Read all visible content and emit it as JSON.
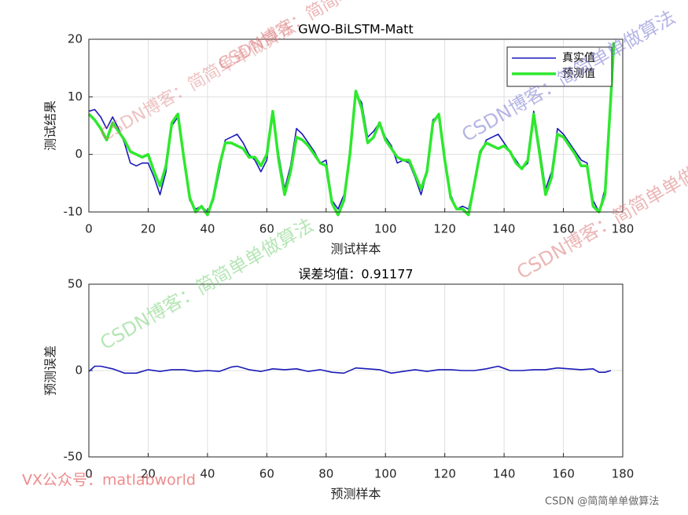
{
  "chart_data": [
    {
      "type": "line",
      "title": "GWO-BiLSTM-Matt",
      "x_label": "测试样本",
      "y_label": "测试结果",
      "x": [
        0,
        2,
        4,
        6,
        8,
        10,
        12,
        14,
        16,
        18,
        20,
        22,
        24,
        26,
        28,
        30,
        32,
        34,
        36,
        38,
        40,
        42,
        44,
        46,
        48,
        50,
        52,
        54,
        56,
        58,
        60,
        62,
        64,
        66,
        68,
        70,
        72,
        74,
        76,
        78,
        80,
        82,
        84,
        86,
        88,
        90,
        92,
        94,
        96,
        98,
        100,
        102,
        104,
        106,
        108,
        110,
        112,
        114,
        116,
        118,
        120,
        122,
        124,
        126,
        128,
        130,
        132,
        134,
        136,
        138,
        140,
        142,
        144,
        146,
        148,
        150,
        152,
        154,
        156,
        158,
        160,
        162,
        164,
        166,
        168,
        170,
        172,
        174,
        176,
        177
      ],
      "series": [
        {
          "name": "真实值",
          "color": "#1a1ab8",
          "width": 1.6,
          "values": [
            7.5,
            7.8,
            6.5,
            4.5,
            6.5,
            4.5,
            2,
            -1.5,
            -2,
            -1.5,
            -1.5,
            -4,
            -7,
            -3,
            5,
            6.5,
            -1,
            -8,
            -9.5,
            -9,
            -10,
            -8,
            -3,
            2.5,
            3,
            3.5,
            2,
            0,
            -1,
            -3,
            -1,
            7,
            0,
            -6,
            -2,
            4.5,
            3.5,
            2,
            0.5,
            -1.5,
            -1,
            -8,
            -9.5,
            -7,
            0,
            10.5,
            9,
            3,
            4,
            5.5,
            3,
            1.5,
            -1.5,
            -1,
            -1.5,
            -4,
            -7,
            -3,
            6,
            6.8,
            -1,
            -7,
            -9.5,
            -9,
            -9.5,
            -5,
            0,
            2.5,
            3,
            3.5,
            2,
            0.5,
            -1,
            -2.5,
            -1.5,
            7.5,
            1,
            -6,
            -3,
            4.5,
            3.5,
            2,
            0.5,
            -1,
            -1.5,
            -8,
            -10,
            -6,
            10,
            18
          ]
        },
        {
          "name": "预测值",
          "color": "#2ee82e",
          "width": 3.5,
          "values": [
            7,
            6,
            4.5,
            2.5,
            5.5,
            4,
            2.5,
            0.5,
            0,
            -0.5,
            0,
            -3,
            -5.5,
            -2,
            5.5,
            7,
            -0.5,
            -7.5,
            -10,
            -9,
            -10.5,
            -7.5,
            -2,
            2,
            2,
            1.5,
            1,
            -0.5,
            -0.5,
            -2,
            0,
            7.5,
            -1,
            -7,
            -3,
            3,
            2.5,
            1.5,
            0,
            -1.5,
            -2,
            -8.5,
            -10.5,
            -8,
            0,
            11,
            8,
            2,
            3,
            5.5,
            2.5,
            1,
            -0.5,
            -1,
            -1,
            -3.5,
            -6,
            -3,
            5.5,
            7,
            -1,
            -7.5,
            -9.5,
            -9.5,
            -10.5,
            -5,
            0.5,
            2,
            1.5,
            1,
            1.5,
            0.5,
            -1.5,
            -2.5,
            -1,
            7,
            0,
            -7,
            -4,
            3.5,
            3,
            1.5,
            0,
            -2,
            -2,
            -9,
            -10,
            -7,
            10,
            19.5
          ]
        }
      ],
      "xlim": [
        0,
        180
      ],
      "xticks": [
        0,
        20,
        40,
        60,
        80,
        100,
        120,
        140,
        160,
        180
      ],
      "ylim": [
        -10,
        20
      ],
      "yticks": [
        -10,
        0,
        10,
        20
      ],
      "grid": true,
      "legend": "northeast"
    },
    {
      "type": "line",
      "title": "误差均值：0.91177",
      "x_label": "预测样本",
      "y_label": "预测误差",
      "x": [
        0,
        2,
        4,
        8,
        12,
        16,
        20,
        24,
        28,
        32,
        36,
        40,
        44,
        48,
        50,
        54,
        58,
        62,
        66,
        70,
        74,
        78,
        82,
        86,
        90,
        94,
        98,
        102,
        106,
        110,
        114,
        118,
        122,
        126,
        130,
        134,
        138,
        142,
        146,
        150,
        154,
        158,
        162,
        166,
        170,
        172,
        174,
        176
      ],
      "series": [
        {
          "name": null,
          "color": "#1a1ab8",
          "width": 1.6,
          "values": [
            -0.5,
            2.5,
            2.5,
            1,
            -1.5,
            -1.5,
            0.5,
            -0.5,
            0.5,
            0.5,
            -0.5,
            0,
            -0.5,
            2,
            2.5,
            0.5,
            -0.5,
            1,
            0.5,
            1,
            -0.5,
            0.5,
            -1,
            -1.5,
            1.5,
            1,
            0.5,
            -1.5,
            -0.5,
            0.5,
            -0.5,
            0.5,
            0.5,
            0,
            0,
            1,
            2.5,
            0,
            0,
            0.5,
            0.5,
            1.5,
            1,
            0.5,
            1,
            -1,
            -1,
            0
          ]
        }
      ],
      "xlim": [
        0,
        180
      ],
      "xticks": [
        0,
        20,
        40,
        60,
        80,
        100,
        120,
        140,
        160,
        180
      ],
      "ylim": [
        -50,
        50
      ],
      "yticks": [
        -50,
        0,
        50
      ],
      "grid": true
    }
  ],
  "watermarks": [
    "CSDN博客：简简单单做算法",
    "CSDN博客：简简单单做算法",
    "CSDN博客：简简单单做算法",
    "CSDN博客：简简单单做算法",
    "CSDN博客：简简单单做算法",
    "VX公众号：matlabworld",
    "CSDN @简简单单做算法"
  ]
}
